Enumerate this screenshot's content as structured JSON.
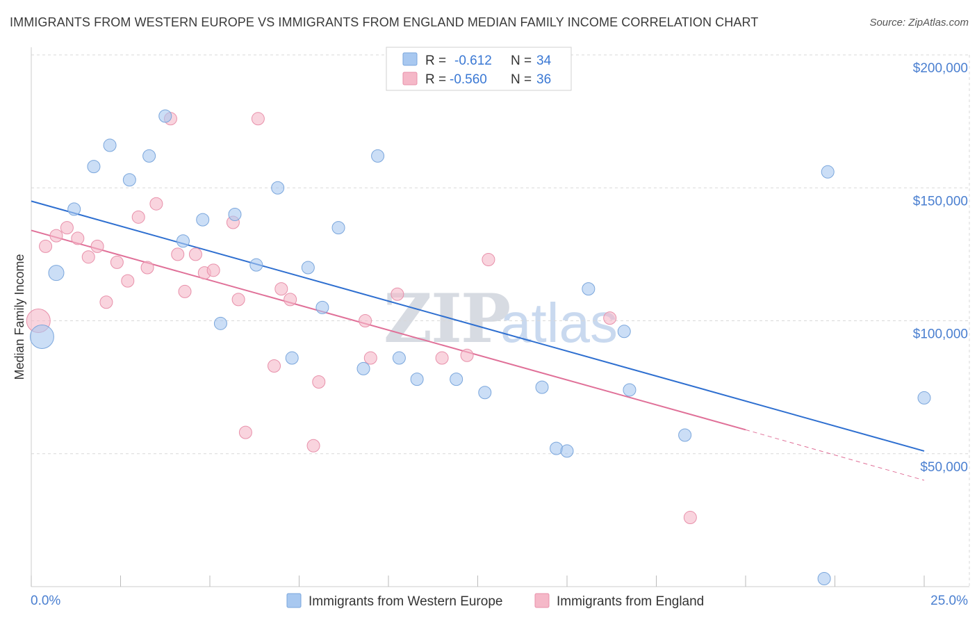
{
  "title": "IMMIGRANTS FROM WESTERN EUROPE VS IMMIGRANTS FROM ENGLAND MEDIAN FAMILY INCOME CORRELATION CHART",
  "source": "Source: ZipAtlas.com",
  "watermark": {
    "zip": "ZIP",
    "atlas": "atlas"
  },
  "legend_top": {
    "rows": [
      {
        "r_label": "R =",
        "r_value": "-0.612",
        "n_label": "N =",
        "n_value": "34",
        "color": "#a8c8f0"
      },
      {
        "r_label": "R =",
        "r_value": "-0.560",
        "n_label": "N =",
        "n_value": "36",
        "color": "#f5b8c8"
      }
    ]
  },
  "legend_bottom": [
    {
      "label": "Immigrants from Western Europe",
      "color": "#a8c8f0"
    },
    {
      "label": "Immigrants from England",
      "color": "#f5b8c8"
    }
  ],
  "colors": {
    "blue_fill": "#a8c8f0",
    "blue_stroke": "#7aa6dc",
    "blue_line": "#2e6fd0",
    "pink_fill": "#f5b8c8",
    "pink_stroke": "#e890aa",
    "pink_line": "#e07098",
    "grid": "#d8d8d8",
    "tick_text": "#4a7fd0"
  },
  "chart_data": {
    "type": "scatter",
    "title": "IMMIGRANTS FROM WESTERN EUROPE VS IMMIGRANTS FROM ENGLAND MEDIAN FAMILY INCOME CORRELATION CHART",
    "xlabel": "",
    "ylabel": "Median Family Income",
    "xlim": [
      0,
      25
    ],
    "ylim": [
      0,
      200000
    ],
    "x_tick_labels": [
      "0.0%",
      "25.0%"
    ],
    "y_ticks": [
      {
        "value": 50000,
        "label": "$50,000"
      },
      {
        "value": 100000,
        "label": "$100,000"
      },
      {
        "value": 150000,
        "label": "$150,000"
      },
      {
        "value": 200000,
        "label": "$200,000"
      }
    ],
    "grid": true,
    "legend_position": "top-center",
    "series": [
      {
        "name": "Immigrants from Western Europe",
        "color": "#a8c8f0",
        "points": [
          [
            0.3,
            94000,
            3
          ],
          [
            0.7,
            118000,
            2
          ],
          [
            1.2,
            142000,
            1
          ],
          [
            1.75,
            158000,
            1
          ],
          [
            2.2,
            166000,
            1
          ],
          [
            2.75,
            153000,
            1
          ],
          [
            3.3,
            162000,
            1
          ],
          [
            3.75,
            177000,
            1
          ],
          [
            4.25,
            130000,
            1
          ],
          [
            4.8,
            138000,
            1
          ],
          [
            5.3,
            99000,
            1
          ],
          [
            5.7,
            140000,
            1
          ],
          [
            6.3,
            121000,
            1
          ],
          [
            6.9,
            150000,
            1
          ],
          [
            7.3,
            86000,
            1
          ],
          [
            7.75,
            120000,
            1
          ],
          [
            8.15,
            105000,
            1
          ],
          [
            8.6,
            135000,
            1
          ],
          [
            9.3,
            82000,
            1
          ],
          [
            9.7,
            162000,
            1
          ],
          [
            10.3,
            86000,
            1
          ],
          [
            10.8,
            78000,
            1
          ],
          [
            11.9,
            78000,
            1
          ],
          [
            12.7,
            73000,
            1
          ],
          [
            14.3,
            75000,
            1
          ],
          [
            14.7,
            52000,
            1
          ],
          [
            15.0,
            51000,
            1
          ],
          [
            15.6,
            112000,
            1
          ],
          [
            16.6,
            96000,
            1
          ],
          [
            16.75,
            74000,
            1
          ],
          [
            18.3,
            57000,
            1
          ],
          [
            22.2,
            3000,
            1
          ],
          [
            22.3,
            156000,
            1
          ],
          [
            25.0,
            71000,
            1
          ]
        ]
      },
      {
        "name": "Immigrants from England",
        "color": "#f5b8c8",
        "points": [
          [
            0.2,
            100000,
            3
          ],
          [
            0.4,
            128000,
            1
          ],
          [
            0.7,
            132000,
            1
          ],
          [
            1.0,
            135000,
            1
          ],
          [
            1.3,
            131000,
            1
          ],
          [
            1.6,
            124000,
            1
          ],
          [
            1.85,
            128000,
            1
          ],
          [
            2.1,
            107000,
            1
          ],
          [
            2.4,
            122000,
            1
          ],
          [
            2.7,
            115000,
            1
          ],
          [
            3.0,
            139000,
            1
          ],
          [
            3.25,
            120000,
            1
          ],
          [
            3.5,
            144000,
            1
          ],
          [
            3.9,
            176000,
            1
          ],
          [
            4.1,
            125000,
            1
          ],
          [
            4.3,
            111000,
            1
          ],
          [
            4.6,
            125000,
            1
          ],
          [
            4.85,
            118000,
            1
          ],
          [
            5.1,
            119000,
            1
          ],
          [
            5.65,
            137000,
            1
          ],
          [
            5.8,
            108000,
            1
          ],
          [
            6.0,
            58000,
            1
          ],
          [
            6.35,
            176000,
            1
          ],
          [
            6.8,
            83000,
            1
          ],
          [
            7.0,
            112000,
            1
          ],
          [
            7.25,
            108000,
            1
          ],
          [
            7.9,
            53000,
            1
          ],
          [
            8.05,
            77000,
            1
          ],
          [
            9.35,
            100000,
            1
          ],
          [
            9.5,
            86000,
            1
          ],
          [
            10.25,
            110000,
            1
          ],
          [
            11.5,
            86000,
            1
          ],
          [
            12.2,
            87000,
            1
          ],
          [
            12.8,
            123000,
            1
          ],
          [
            16.2,
            101000,
            1
          ],
          [
            18.45,
            26000,
            1
          ]
        ]
      }
    ],
    "trend_lines": [
      {
        "series": "Immigrants from Western Europe",
        "x": [
          0,
          25
        ],
        "y": [
          145000,
          51000
        ],
        "style": "solid"
      },
      {
        "series": "Immigrants from England",
        "x": [
          0,
          20
        ],
        "y": [
          134000,
          59000
        ],
        "style": "solid"
      },
      {
        "series": "Immigrants from England",
        "x": [
          20,
          25
        ],
        "y": [
          59000,
          40000
        ],
        "style": "dashed"
      }
    ]
  }
}
